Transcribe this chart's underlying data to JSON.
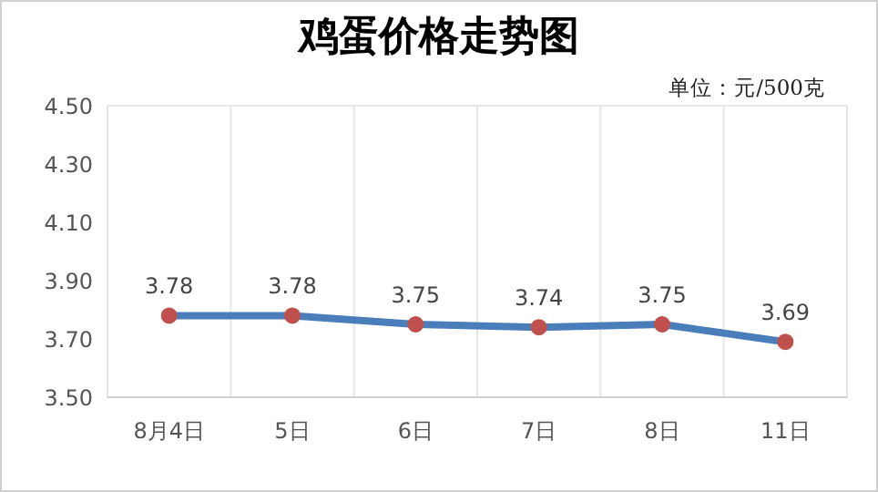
{
  "chart_data": {
    "type": "line",
    "title": "鸡蛋价格走势图",
    "annotations": [
      "单位：元/500克"
    ],
    "categories": [
      "8月4日",
      "5日",
      "6日",
      "7日",
      "8日",
      "11日"
    ],
    "series": [
      {
        "color": "#4a7ebb",
        "values": [
          3.78,
          3.78,
          3.75,
          3.74,
          3.75,
          3.69
        ]
      }
    ],
    "ylim": [
      3.5,
      4.5
    ],
    "yticks": [
      {
        "value": 3.5,
        "label": "3.50"
      },
      {
        "value": 3.7,
        "label": "3.70"
      },
      {
        "value": 3.9,
        "label": "3.90"
      },
      {
        "value": 4.1,
        "label": "4.10"
      },
      {
        "value": 4.3,
        "label": "4.30"
      },
      {
        "value": 4.5,
        "label": "4.50"
      }
    ],
    "grid": true,
    "marker": "circle",
    "line_style": "solid",
    "data_labels": true,
    "legend": false
  }
}
